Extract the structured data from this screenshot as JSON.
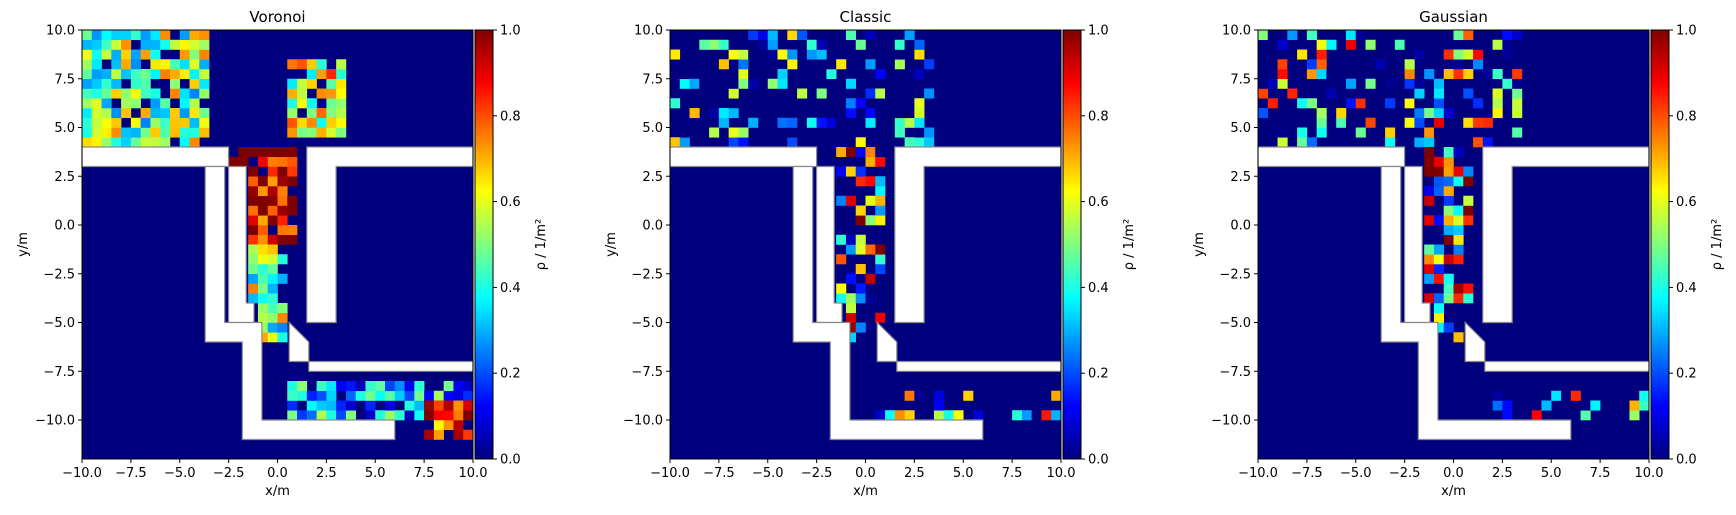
{
  "chart_data": [
    {
      "type": "heatmap",
      "title": "Voronoi",
      "xlabel": "x/m",
      "ylabel": "y/m",
      "xlim": [
        -10,
        10
      ],
      "ylim": [
        -12,
        10
      ],
      "xticks": [
        "−10.0",
        "−7.5",
        "−5.0",
        "−2.5",
        "0.0",
        "2.5",
        "5.0",
        "7.5",
        "10.0"
      ],
      "yticks": [
        "−10.0",
        "−7.5",
        "−5.0",
        "−2.5",
        "0.0",
        "2.5",
        "5.0",
        "7.5",
        "10.0"
      ],
      "colorbar": {
        "label": "ρ / 1/m²",
        "range": [
          0,
          1
        ],
        "ticks": [
          "0.0",
          "0.2",
          "0.4",
          "0.6",
          "0.8",
          "1.0"
        ],
        "colormap": "jet"
      },
      "cmap_colors": [
        "#00007f",
        "#0000ff",
        "#007fff",
        "#00ffff",
        "#7fff7f",
        "#ffff00",
        "#ff7f00",
        "#ff0000",
        "#7f0000"
      ],
      "density_zones": [
        {
          "region": "top-left crowd",
          "x": [
            -10,
            -3.5
          ],
          "y": [
            4,
            10
          ],
          "density": 0.5
        },
        {
          "region": "top-right crowd",
          "x": [
            0.5,
            3.5
          ],
          "y": [
            4.5,
            8.5
          ],
          "density": 0.6
        },
        {
          "region": "corridor inflow",
          "x": [
            -2.5,
            1
          ],
          "y": [
            -1,
            4
          ],
          "density": 0.95
        },
        {
          "region": "corridor lower",
          "x": [
            -1.5,
            0.5
          ],
          "y": [
            -6,
            -1
          ],
          "density": 0.5
        },
        {
          "region": "bottom exit",
          "x": [
            0.5,
            10
          ],
          "y": [
            -10,
            -8
          ],
          "density": 0.3
        },
        {
          "region": "bottom-right cluster",
          "x": [
            7.5,
            10
          ],
          "y": [
            -11,
            -9
          ],
          "density": 0.85
        }
      ]
    },
    {
      "type": "heatmap",
      "title": "Classic",
      "xlabel": "x/m",
      "ylabel": "y/m",
      "xlim": [
        -10,
        10
      ],
      "ylim": [
        -12,
        10
      ],
      "xticks": [
        "−10.0",
        "−7.5",
        "−5.0",
        "−2.5",
        "0.0",
        "2.5",
        "5.0",
        "7.5",
        "10.0"
      ],
      "yticks": [
        "−10.0",
        "−7.5",
        "−5.0",
        "−2.5",
        "0.0",
        "2.5",
        "5.0",
        "7.5",
        "10.0"
      ],
      "colorbar": {
        "label": "ρ / 1/m²",
        "range": [
          0,
          1
        ],
        "ticks": [
          "0.0",
          "0.2",
          "0.4",
          "0.6",
          "0.8",
          "1.0"
        ],
        "colormap": "jet"
      },
      "cmap_colors": [
        "#00007f",
        "#0000ff",
        "#007fff",
        "#00ffff",
        "#7fff7f",
        "#ffff00",
        "#ff7f00",
        "#ff0000",
        "#7f0000"
      ],
      "density_zones": [
        {
          "region": "top scattered",
          "x": [
            -10,
            3.5
          ],
          "y": [
            4,
            10
          ],
          "density": 0.15
        },
        {
          "region": "corridor",
          "x": [
            -1.5,
            1
          ],
          "y": [
            -6,
            4
          ],
          "density": 0.55
        },
        {
          "region": "bottom exit",
          "x": [
            0.5,
            10
          ],
          "y": [
            -10,
            -8.5
          ],
          "density": 0.35
        }
      ]
    },
    {
      "type": "heatmap",
      "title": "Gaussian",
      "xlabel": "x/m",
      "ylabel": "y/m",
      "xlim": [
        -10,
        10
      ],
      "ylim": [
        -12,
        10
      ],
      "xticks": [
        "−10.0",
        "−7.5",
        "−5.0",
        "−2.5",
        "0.0",
        "2.5",
        "5.0",
        "7.5",
        "10.0"
      ],
      "yticks": [
        "−10.0",
        "−7.5",
        "−5.0",
        "−2.5",
        "0.0",
        "2.5",
        "5.0",
        "7.5",
        "10.0"
      ],
      "colorbar": {
        "label": "ρ / 1/m²",
        "range": [
          0,
          1
        ],
        "ticks": [
          "0.0",
          "0.2",
          "0.4",
          "0.6",
          "0.8",
          "1.0"
        ],
        "colormap": "jet"
      },
      "cmap_colors": [
        "#00007f",
        "#0000ff",
        "#007fff",
        "#00ffff",
        "#7fff7f",
        "#ffff00",
        "#ff7f00",
        "#ff0000",
        "#7f0000"
      ],
      "density_zones": [
        {
          "region": "top scattered",
          "x": [
            -10,
            3.5
          ],
          "y": [
            4,
            10
          ],
          "density": 0.35
        },
        {
          "region": "corridor",
          "x": [
            -1.5,
            1
          ],
          "y": [
            -6,
            4
          ],
          "density": 0.6
        },
        {
          "region": "bottom exit",
          "x": [
            0.5,
            10
          ],
          "y": [
            -10,
            -8.5
          ],
          "density": 0.35
        }
      ]
    }
  ]
}
